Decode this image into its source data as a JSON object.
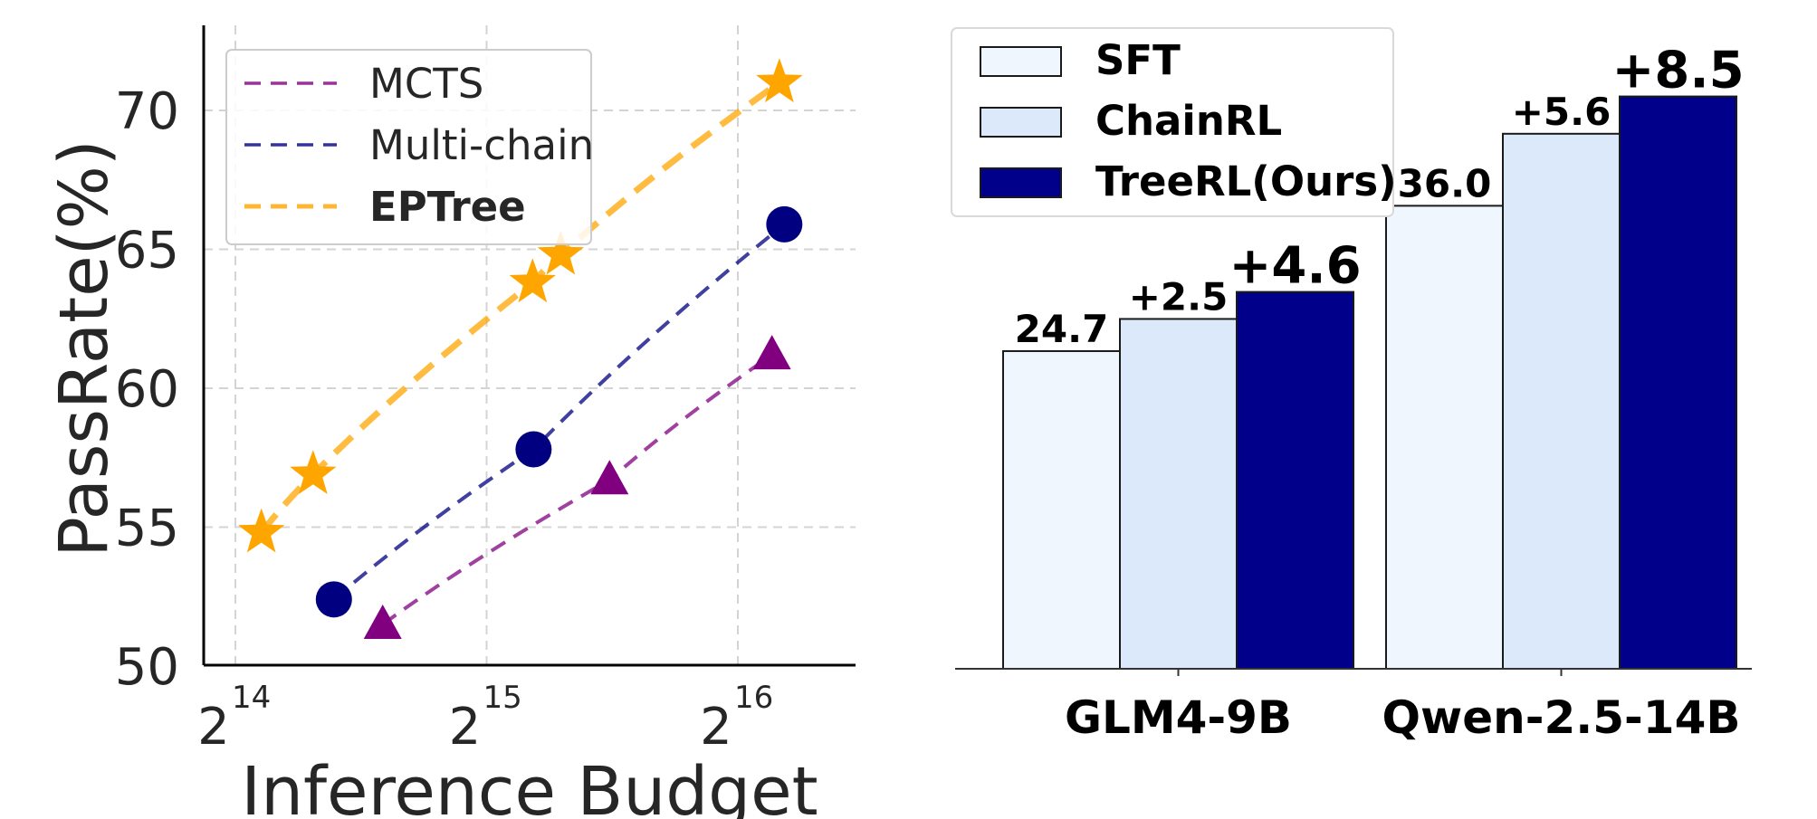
{
  "chart_data": [
    {
      "type": "line",
      "title": "",
      "xlabel": "Inference Budget",
      "ylabel": "PassRate(%)",
      "x_scale": "log2",
      "xticks": [
        {
          "base": "2",
          "exp": "14",
          "value": 16384
        },
        {
          "base": "2",
          "exp": "15",
          "value": 32768
        },
        {
          "base": "2",
          "exp": "16",
          "value": 65536
        }
      ],
      "yticks": [
        "50",
        "55",
        "60",
        "65",
        "70"
      ],
      "ylim": [
        50,
        73
      ],
      "grid": true,
      "legend_position": "upper-left",
      "series": [
        {
          "name": "MCTS",
          "color": "#800080",
          "marker": "triangle",
          "points": [
            [
              24600,
              51.5
            ],
            [
              46000,
              56.7
            ],
            [
              72000,
              61.2
            ]
          ]
        },
        {
          "name": "Multi-chain",
          "color": "#000080",
          "marker": "circle",
          "points": [
            [
              21500,
              52.4
            ],
            [
              37300,
              57.8
            ],
            [
              74500,
              65.9
            ]
          ]
        },
        {
          "name": "EPTree",
          "color": "#FFA500",
          "marker": "star",
          "points": [
            [
              17600,
              54.8
            ],
            [
              20300,
              56.9
            ],
            [
              37200,
              63.8
            ],
            [
              40200,
              64.8
            ],
            [
              73500,
              71.0
            ]
          ]
        }
      ]
    },
    {
      "type": "bar",
      "title": "",
      "xlabel": "",
      "ylabel": "",
      "categories": [
        "GLM4-9B",
        "Qwen-2.5-14B"
      ],
      "ylim": [
        0,
        52
      ],
      "legend_position": "upper-left",
      "series": [
        {
          "name": "SFT",
          "color": "#f0f6fd",
          "values": [
            24.7,
            36.0
          ],
          "labels": [
            "24.7",
            "36.0"
          ]
        },
        {
          "name": "ChainRL",
          "color": "#dbe9fb",
          "values": [
            27.2,
            41.6
          ],
          "labels": [
            "+2.5",
            "+5.6"
          ]
        },
        {
          "name": "TreeRL(Ours)",
          "color": "#00008b",
          "values": [
            29.3,
            44.5
          ],
          "labels": [
            "+4.6",
            "+8.5"
          ]
        }
      ]
    }
  ]
}
